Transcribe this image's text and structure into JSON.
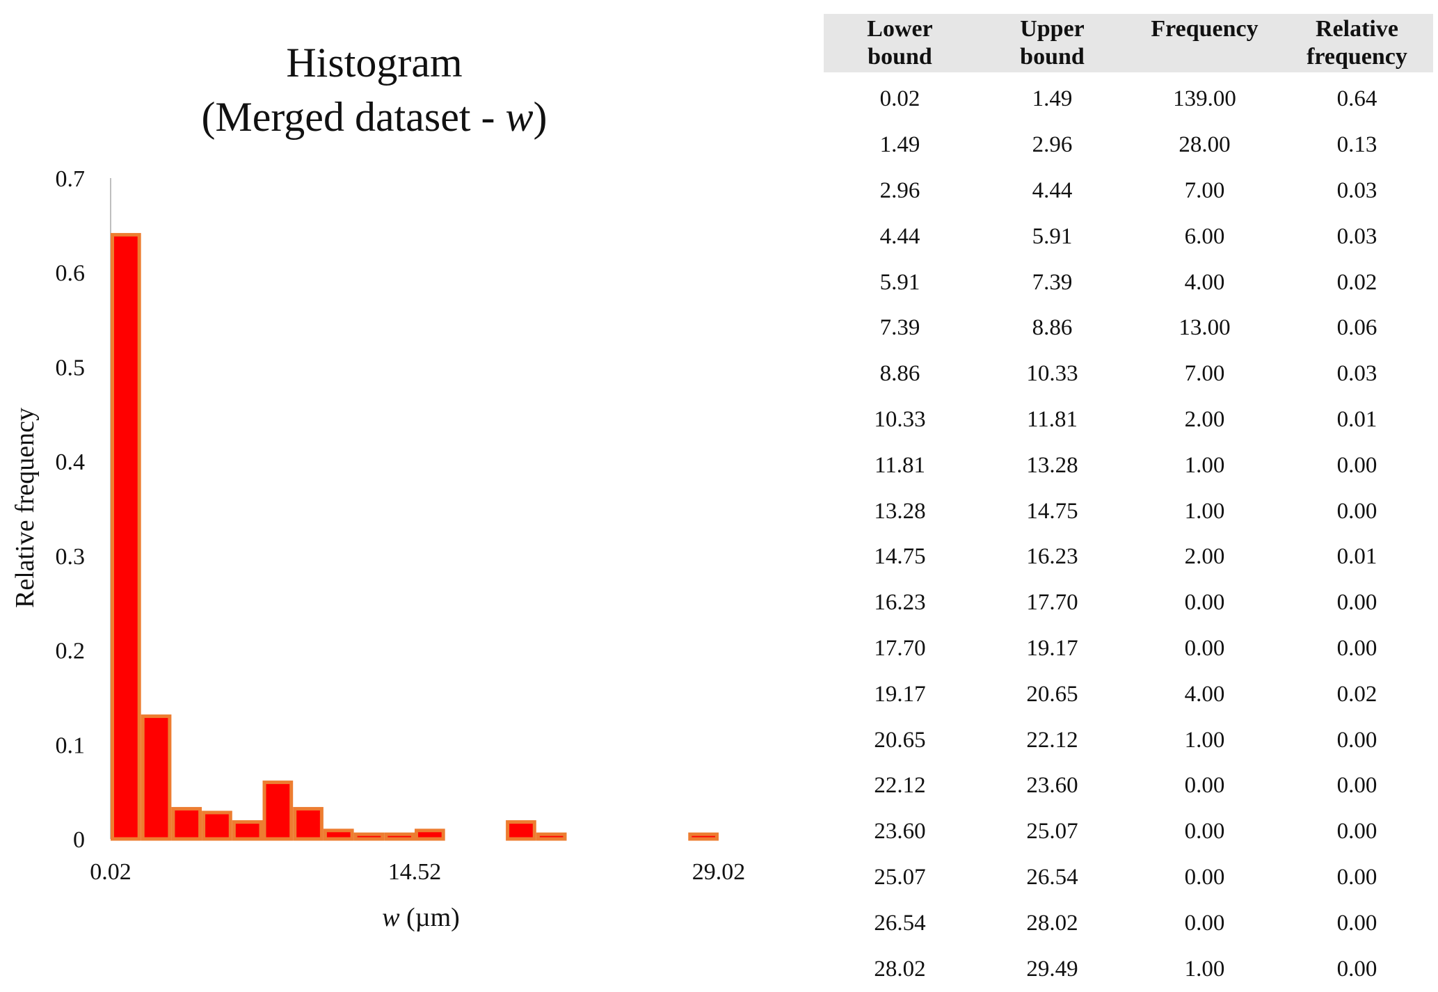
{
  "chart_data": {
    "type": "bar",
    "title": "Histogram",
    "subtitle_prefix": "(Merged dataset - ",
    "subtitle_var": "w",
    "subtitle_suffix": ")",
    "xlabel_var": "w",
    "xlabel_unit": " (µm)",
    "ylabel": "Relative frequency",
    "ylim": [
      0,
      0.7
    ],
    "yticks": [
      "0",
      "0.1",
      "0.2",
      "0.3",
      "0.4",
      "0.5",
      "0.6",
      "0.7"
    ],
    "xticks": [
      "0.02",
      "14.52",
      "29.02"
    ],
    "xlim": [
      0.02,
      29.02
    ],
    "bins": [
      {
        "lower": 0.02,
        "upper": 1.49,
        "value": 0.64
      },
      {
        "lower": 1.49,
        "upper": 2.96,
        "value": 0.13
      },
      {
        "lower": 2.96,
        "upper": 4.44,
        "value": 0.032
      },
      {
        "lower": 4.44,
        "upper": 5.91,
        "value": 0.028
      },
      {
        "lower": 5.91,
        "upper": 7.39,
        "value": 0.018
      },
      {
        "lower": 7.39,
        "upper": 8.86,
        "value": 0.06
      },
      {
        "lower": 8.86,
        "upper": 10.33,
        "value": 0.032
      },
      {
        "lower": 10.33,
        "upper": 11.81,
        "value": 0.009
      },
      {
        "lower": 11.81,
        "upper": 13.28,
        "value": 0.005
      },
      {
        "lower": 13.28,
        "upper": 14.75,
        "value": 0.005
      },
      {
        "lower": 14.75,
        "upper": 16.23,
        "value": 0.009
      },
      {
        "lower": 16.23,
        "upper": 17.7,
        "value": 0.0
      },
      {
        "lower": 17.7,
        "upper": 19.17,
        "value": 0.0
      },
      {
        "lower": 19.17,
        "upper": 20.65,
        "value": 0.018
      },
      {
        "lower": 20.65,
        "upper": 22.12,
        "value": 0.005
      },
      {
        "lower": 22.12,
        "upper": 23.6,
        "value": 0.0
      },
      {
        "lower": 23.6,
        "upper": 25.07,
        "value": 0.0
      },
      {
        "lower": 25.07,
        "upper": 26.54,
        "value": 0.0
      },
      {
        "lower": 26.54,
        "upper": 28.02,
        "value": 0.0
      },
      {
        "lower": 28.02,
        "upper": 29.49,
        "value": 0.005
      }
    ],
    "bar_fill": "#ff0000",
    "bar_edge": "#ed7d31",
    "grid": false,
    "legend": "none"
  },
  "table": {
    "headers": [
      {
        "line1": "Lower",
        "line2": "bound"
      },
      {
        "line1": "Upper",
        "line2": "bound"
      },
      {
        "line1": "Frequency",
        "line2": ""
      },
      {
        "line1": "Relative",
        "line2": "frequency"
      }
    ],
    "rows": [
      [
        "0.02",
        "1.49",
        "139.00",
        "0.64"
      ],
      [
        "1.49",
        "2.96",
        "28.00",
        "0.13"
      ],
      [
        "2.96",
        "4.44",
        "7.00",
        "0.03"
      ],
      [
        "4.44",
        "5.91",
        "6.00",
        "0.03"
      ],
      [
        "5.91",
        "7.39",
        "4.00",
        "0.02"
      ],
      [
        "7.39",
        "8.86",
        "13.00",
        "0.06"
      ],
      [
        "8.86",
        "10.33",
        "7.00",
        "0.03"
      ],
      [
        "10.33",
        "11.81",
        "2.00",
        "0.01"
      ],
      [
        "11.81",
        "13.28",
        "1.00",
        "0.00"
      ],
      [
        "13.28",
        "14.75",
        "1.00",
        "0.00"
      ],
      [
        "14.75",
        "16.23",
        "2.00",
        "0.01"
      ],
      [
        "16.23",
        "17.70",
        "0.00",
        "0.00"
      ],
      [
        "17.70",
        "19.17",
        "0.00",
        "0.00"
      ],
      [
        "19.17",
        "20.65",
        "4.00",
        "0.02"
      ],
      [
        "20.65",
        "22.12",
        "1.00",
        "0.00"
      ],
      [
        "22.12",
        "23.60",
        "0.00",
        "0.00"
      ],
      [
        "23.60",
        "25.07",
        "0.00",
        "0.00"
      ],
      [
        "25.07",
        "26.54",
        "0.00",
        "0.00"
      ],
      [
        "26.54",
        "28.02",
        "0.00",
        "0.00"
      ],
      [
        "28.02",
        "29.49",
        "1.00",
        "0.00"
      ]
    ]
  }
}
